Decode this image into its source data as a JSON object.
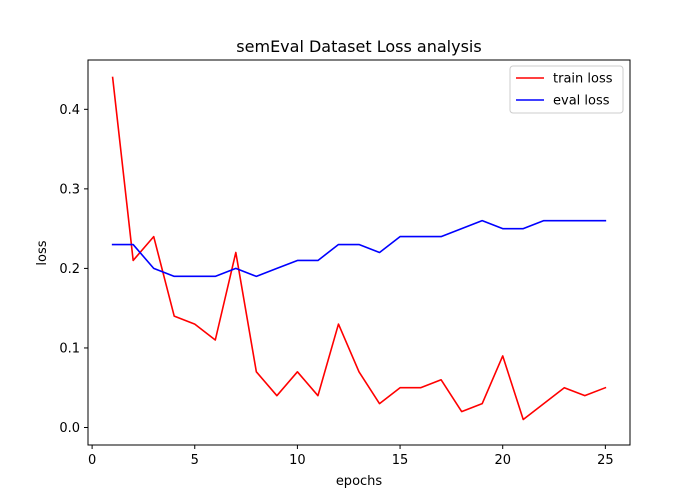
{
  "chart_data": {
    "type": "line",
    "title": "semEval Dataset Loss analysis",
    "xlabel": "epochs",
    "ylabel": "loss",
    "xlim": [
      -0.2,
      26.2
    ],
    "ylim": [
      -0.022,
      0.462
    ],
    "xticks": [
      0,
      5,
      10,
      15,
      20,
      25
    ],
    "xtick_labels": [
      "0",
      "5",
      "10",
      "15",
      "20",
      "25"
    ],
    "yticks": [
      0.0,
      0.1,
      0.2,
      0.3,
      0.4
    ],
    "ytick_labels": [
      "0.0",
      "0.1",
      "0.2",
      "0.3",
      "0.4"
    ],
    "grid": false,
    "legend_position": "top-right",
    "x": [
      1,
      2,
      3,
      4,
      5,
      6,
      7,
      8,
      9,
      10,
      11,
      12,
      13,
      14,
      15,
      16,
      17,
      18,
      19,
      20,
      21,
      22,
      23,
      24,
      25
    ],
    "series": [
      {
        "name": "train loss",
        "color": "#ff0000",
        "values": [
          0.44,
          0.21,
          0.24,
          0.14,
          0.13,
          0.11,
          0.22,
          0.07,
          0.04,
          0.07,
          0.04,
          0.13,
          0.07,
          0.03,
          0.05,
          0.05,
          0.06,
          0.02,
          0.03,
          0.09,
          0.01,
          0.03,
          0.05,
          0.04,
          0.05
        ]
      },
      {
        "name": "eval loss",
        "color": "#0000ff",
        "values": [
          0.23,
          0.23,
          0.2,
          0.19,
          0.19,
          0.19,
          0.2,
          0.19,
          0.2,
          0.21,
          0.21,
          0.23,
          0.23,
          0.22,
          0.24,
          0.24,
          0.24,
          0.25,
          0.26,
          0.25,
          0.25,
          0.26,
          0.26,
          0.26,
          0.26
        ]
      }
    ]
  }
}
